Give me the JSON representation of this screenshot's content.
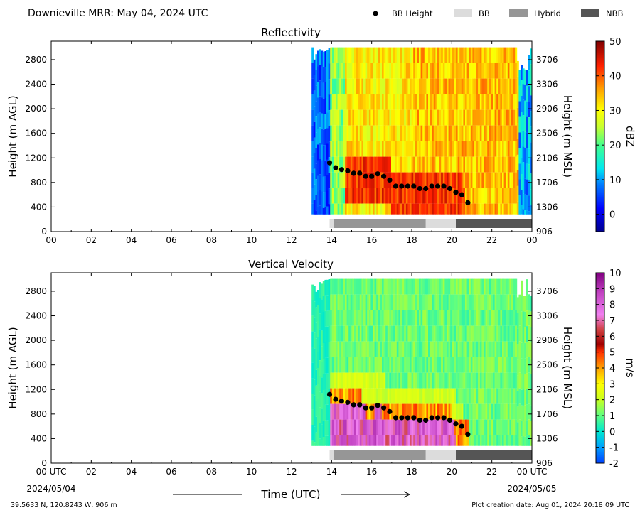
{
  "header": {
    "title": "Downieville MRR:  May 04, 2024 UTC",
    "legend": [
      {
        "label": "BB Height",
        "kind": "marker",
        "color": "#000000"
      },
      {
        "label": "BB",
        "kind": "patch",
        "color": "#dcdcdc"
      },
      {
        "label": "Hybrid",
        "kind": "patch",
        "color": "#969696"
      },
      {
        "label": "NBB",
        "kind": "patch",
        "color": "#555555"
      }
    ]
  },
  "footer": {
    "coords": "39.5633 N, 120.8243 W, 906 m",
    "creation": "Plot creation date: Aug 01, 2024 20:18:09 UTC",
    "xlabel": "Time (UTC)",
    "date_left": "2024/05/04",
    "date_right": "2024/05/05"
  },
  "chart_data": [
    {
      "type": "heatmap",
      "title": "Reflectivity",
      "ylabel": "Height (m AGL)",
      "ylabel_right": "Height (m MSL)",
      "xlim": [
        0,
        24
      ],
      "ylim": [
        0,
        3100
      ],
      "x_tick_labels": [
        "00",
        "02",
        "04",
        "06",
        "08",
        "10",
        "12",
        "14",
        "16",
        "18",
        "20",
        "22",
        "00"
      ],
      "y_ticks": [
        0,
        400,
        800,
        1200,
        1600,
        2000,
        2400,
        2800
      ],
      "y_ticks_right": [
        906,
        1306,
        1706,
        2106,
        2506,
        2906,
        3306,
        3706
      ],
      "colorbar": {
        "label": "dBZ",
        "range": [
          -5,
          50
        ],
        "ticks": [
          0,
          10,
          20,
          30,
          40,
          50
        ]
      },
      "data_start_hour": 13.0,
      "data_top_m": 3000,
      "data_bottom_m": 280,
      "bb_height": {
        "x": [
          13.9,
          14.2,
          14.5,
          14.8,
          15.1,
          15.4,
          15.7,
          16.0,
          16.3,
          16.6,
          16.9,
          17.2,
          17.5,
          17.8,
          18.1,
          18.4,
          18.7,
          19.0,
          19.3,
          19.6,
          19.9,
          20.2,
          20.5,
          20.8
        ],
        "y": [
          1120,
          1040,
          1010,
          990,
          950,
          950,
          900,
          900,
          940,
          900,
          840,
          740,
          740,
          740,
          740,
          700,
          700,
          740,
          740,
          740,
          700,
          640,
          600,
          470
        ]
      },
      "bb_type_segments": [
        {
          "type": "BB",
          "start": 13.9,
          "end": 14.1
        },
        {
          "type": "Hybrid",
          "start": 14.1,
          "end": 18.7
        },
        {
          "type": "BB",
          "start": 18.7,
          "end": 20.2
        },
        {
          "type": "NBB",
          "start": 20.2,
          "end": 24.0
        }
      ]
    },
    {
      "type": "heatmap",
      "title": "Vertical Velocity",
      "ylabel": "Height (m AGL)",
      "ylabel_right": "Height (m MSL)",
      "xlim": [
        0,
        24
      ],
      "ylim": [
        0,
        3100
      ],
      "x_tick_labels": [
        "00 UTC",
        "02",
        "04",
        "06",
        "08",
        "10",
        "12",
        "14",
        "16",
        "18",
        "20",
        "22",
        "00 UTC"
      ],
      "y_ticks": [
        0,
        400,
        800,
        1200,
        1600,
        2000,
        2400,
        2800
      ],
      "y_ticks_right": [
        906,
        1306,
        1706,
        2106,
        2506,
        2906,
        3306,
        3706
      ],
      "colorbar": {
        "label": "m/s",
        "range": [
          -2,
          10
        ],
        "ticks": [
          -2,
          -1,
          0,
          1,
          2,
          3,
          4,
          5,
          6,
          7,
          8,
          9,
          10
        ]
      },
      "data_start_hour": 13.0,
      "data_top_m": 3000,
      "data_bottom_m": 280,
      "bb_height": {
        "x": [
          13.9,
          14.2,
          14.5,
          14.8,
          15.1,
          15.4,
          15.7,
          16.0,
          16.3,
          16.6,
          16.9,
          17.2,
          17.5,
          17.8,
          18.1,
          18.4,
          18.7,
          19.0,
          19.3,
          19.6,
          19.9,
          20.2,
          20.5,
          20.8
        ],
        "y": [
          1120,
          1040,
          1010,
          990,
          950,
          950,
          900,
          900,
          940,
          900,
          840,
          740,
          740,
          740,
          740,
          700,
          700,
          740,
          740,
          740,
          700,
          640,
          600,
          470
        ]
      },
      "bb_type_segments": [
        {
          "type": "BB",
          "start": 13.9,
          "end": 14.1
        },
        {
          "type": "Hybrid",
          "start": 14.1,
          "end": 18.7
        },
        {
          "type": "BB",
          "start": 18.7,
          "end": 20.2
        },
        {
          "type": "NBB",
          "start": 20.2,
          "end": 24.0
        }
      ]
    }
  ]
}
